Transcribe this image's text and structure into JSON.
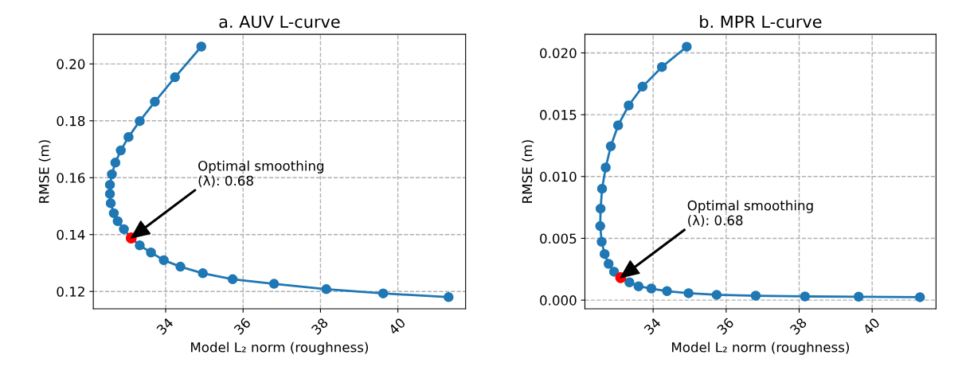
{
  "chart_data": [
    {
      "type": "line",
      "title": "a. AUV L-curve",
      "xlabel": "Model L₂ norm (roughness)",
      "ylabel": "RMSE (m)",
      "marker": "circle",
      "grid": true,
      "xlim": [
        32.13,
        41.75
      ],
      "ylim": [
        0.1139,
        0.2104
      ],
      "xticks": [
        34,
        36,
        38,
        40
      ],
      "yticks": [
        0.12,
        0.14,
        0.16,
        0.18,
        {
          "value": 0.2,
          "label": "0.20"
        }
      ],
      "series": [
        {
          "color": "#1f77b4",
          "x": [
            34.92,
            34.24,
            33.72,
            33.33,
            33.04,
            32.84,
            32.7,
            32.61,
            32.56,
            32.56,
            32.58,
            32.66,
            32.76,
            32.92,
            33.11,
            33.33,
            33.62,
            33.95,
            34.38,
            34.96,
            35.73,
            36.8,
            38.15,
            39.62,
            41.31
          ],
          "values": [
            0.2061,
            0.1953,
            0.1867,
            0.1799,
            0.1743,
            0.1696,
            0.1653,
            0.1612,
            0.1575,
            0.1543,
            0.151,
            0.1475,
            0.1447,
            0.1419,
            0.1388,
            0.1362,
            0.1337,
            0.131,
            0.1287,
            0.1264,
            0.1243,
            0.1227,
            0.1208,
            0.1193,
            0.118
          ]
        },
        {
          "type": "scatter",
          "color": "#ff0000",
          "x": [
            33.11
          ],
          "values": [
            0.1388
          ]
        }
      ],
      "annotations": [
        "Optimal smoothing\n(λ): 0.68"
      ]
    },
    {
      "type": "line",
      "title": "b. MPR L-curve",
      "xlabel": "Model L₂ norm (roughness)",
      "ylabel": "RMSE (m)",
      "marker": "circle",
      "grid": true,
      "xlim": [
        32.13,
        41.75
      ],
      "ylim": [
        -0.0007,
        0.0215
      ],
      "xticks": [
        34,
        36,
        38,
        40
      ],
      "yticks": [
        {
          "value": 0,
          "label": "0.000"
        },
        {
          "value": 0.005,
          "label": "0.005"
        },
        {
          "value": 0.01,
          "label": "0.010"
        },
        {
          "value": 0.015,
          "label": "0.015"
        },
        {
          "value": 0.02,
          "label": "0.020"
        }
      ],
      "series": [
        {
          "color": "#1f77b4",
          "x": [
            34.92,
            34.24,
            33.71,
            33.33,
            33.04,
            32.84,
            32.7,
            32.6,
            32.56,
            32.55,
            32.59,
            32.67,
            32.78,
            32.93,
            33.11,
            33.35,
            33.6,
            33.95,
            34.38,
            34.97,
            35.74,
            36.81,
            38.16,
            39.63,
            41.31
          ],
          "values": [
            0.0205,
            0.01886,
            0.01727,
            0.01575,
            0.01414,
            0.01245,
            0.01073,
            0.00901,
            0.0074,
            0.00599,
            0.00472,
            0.00373,
            0.00294,
            0.0023,
            0.00182,
            0.00144,
            0.00112,
            0.00094,
            0.00073,
            0.00056,
            0.00043,
            0.00036,
            0.0003,
            0.00028,
            0.00024
          ]
        },
        {
          "type": "scatter",
          "color": "#ff0000",
          "x": [
            33.11
          ],
          "values": [
            0.00182
          ]
        }
      ],
      "annotations": [
        "Optimal smoothing\n(λ): 0.68"
      ]
    }
  ]
}
